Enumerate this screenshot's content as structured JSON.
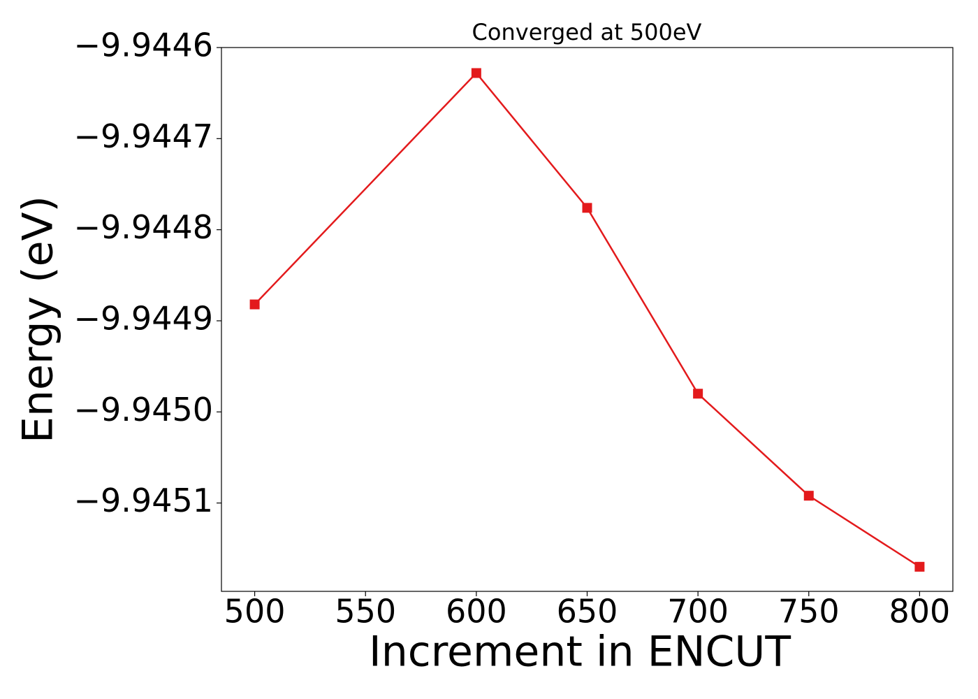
{
  "chart_data": {
    "type": "line",
    "title": "Converged at 500eV",
    "xlabel": "Increment in ENCUT",
    "ylabel": "Energy (eV)",
    "x": [
      500,
      600,
      650,
      700,
      750,
      800
    ],
    "series": [
      {
        "color": "#e31a1c",
        "marker": "square",
        "values": [
          -9.944882,
          -9.944628,
          -9.944776,
          -9.94498,
          -9.945092,
          -9.94517
        ]
      }
    ],
    "xlim": [
      485,
      815
    ],
    "xticks": [
      500,
      550,
      600,
      650,
      700,
      750,
      800
    ],
    "ylim": [
      -9.945197,
      -9.9446
    ],
    "yticks": [
      {
        "value": -9.9446,
        "label": "−9.9446"
      },
      {
        "value": -9.9447,
        "label": "−9.9447"
      },
      {
        "value": -9.9448,
        "label": "−9.9448"
      },
      {
        "value": -9.9449,
        "label": "−9.9449"
      },
      {
        "value": -9.945,
        "label": "−9.9450"
      },
      {
        "value": -9.9451,
        "label": "−9.9451"
      }
    ],
    "grid": false
  }
}
